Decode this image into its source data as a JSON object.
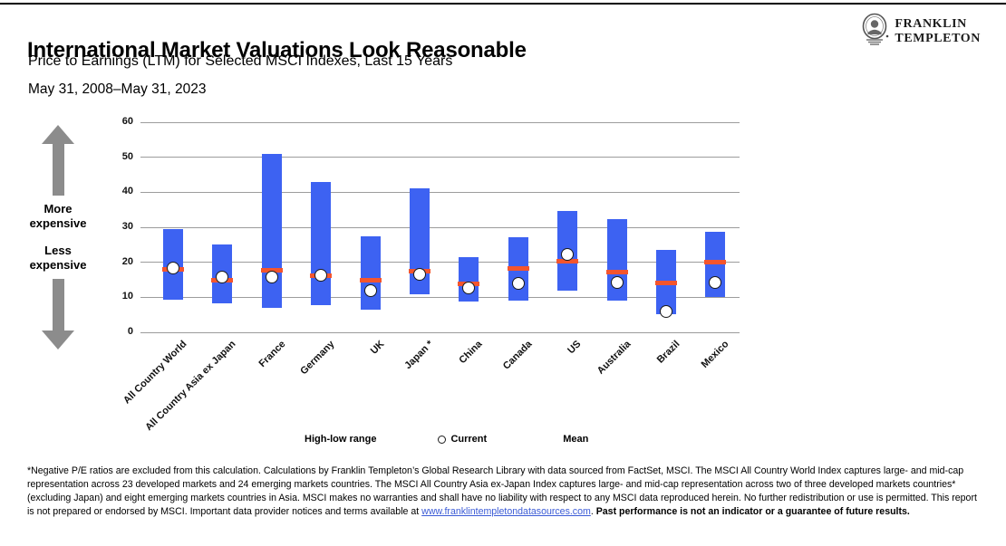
{
  "header": {
    "title": "International Market Valuations Look Reasonable",
    "subtitle": "Price to Earnings (LTM) for Selected MSCI Indexes, Last 15 Years",
    "date_range": "May 31, 2008–May 31, 2023"
  },
  "logo": {
    "line1": "FRANKLIN",
    "line2": "TEMPLETON",
    "emblem": "ben-franklin-portrait"
  },
  "annotations": {
    "more_expensive": "More expensive",
    "less_expensive": "Less expensive"
  },
  "legend": [
    {
      "label": "High-low range",
      "type": "bar",
      "color": "#3D62F2"
    },
    {
      "label": "Current",
      "type": "circle",
      "color": "#FFFFFF"
    },
    {
      "label": "Mean",
      "type": "dash",
      "color": "#F4552D"
    }
  ],
  "chart_data": {
    "type": "bar",
    "subtype": "floating-high-low-range-with-markers",
    "title": "",
    "xlabel": "",
    "ylabel": "",
    "ylim": [
      0,
      60
    ],
    "ytick_interval": 10,
    "grid": true,
    "legend_position": "bottom",
    "categories": [
      "All Country World",
      "All Country Asia ex Japan",
      "France",
      "Germany",
      "UK",
      "Japan *",
      "China",
      "Canada",
      "US",
      "Australia",
      "Brazil",
      "Mexico"
    ],
    "series": [
      {
        "name": "High (15-year)",
        "values": [
          29.5,
          25.1,
          51.0,
          43.0,
          27.4,
          41.0,
          21.5,
          27.1,
          34.7,
          32.2,
          23.5,
          28.7
        ]
      },
      {
        "name": "Low (15-year)",
        "values": [
          9.4,
          8.4,
          7.0,
          7.7,
          6.5,
          10.9,
          8.7,
          9.0,
          11.9,
          9.1,
          5.2,
          10.0
        ]
      },
      {
        "name": "Current",
        "values": [
          18.4,
          15.7,
          15.8,
          16.4,
          11.9,
          16.5,
          12.8,
          13.9,
          22.2,
          14.3,
          5.9,
          14.3
        ]
      },
      {
        "name": "Mean",
        "values": [
          18.0,
          14.8,
          17.6,
          16.2,
          15.0,
          17.5,
          13.9,
          18.2,
          20.3,
          17.3,
          14.0,
          20.1
        ]
      }
    ],
    "colors": {
      "range_bar": "#3D62F2",
      "mean_dash": "#F4552D",
      "current_fill": "#FFFFFF",
      "current_stroke": "#1A1A1A",
      "gridline": "#9C9C9C"
    }
  },
  "footnote": {
    "text_before_link": "*Negative P/E ratios are excluded from this calculation. Calculations by Franklin Templeton’s Global Research Library with data sourced from FactSet, MSCI. The MSCI All Country World Index captures large- and mid-cap representation across 23 developed markets and 24 emerging markets countries. The MSCI All Country Asia ex-Japan Index captures large- and mid-cap representation across two of three developed markets countries* (excluding Japan) and eight emerging markets countries in Asia. MSCI makes no warranties and shall have no liability with respect to any MSCI data reproduced herein. No further redistribution or use is permitted. This report is not prepared or endorsed by MSCI. Important data provider notices and terms available at ",
    "link_text": "www.franklintempletondatasources.com",
    "text_after_link": ". ",
    "bold_text": "Past performance is not an indicator or a guarantee of future results."
  }
}
